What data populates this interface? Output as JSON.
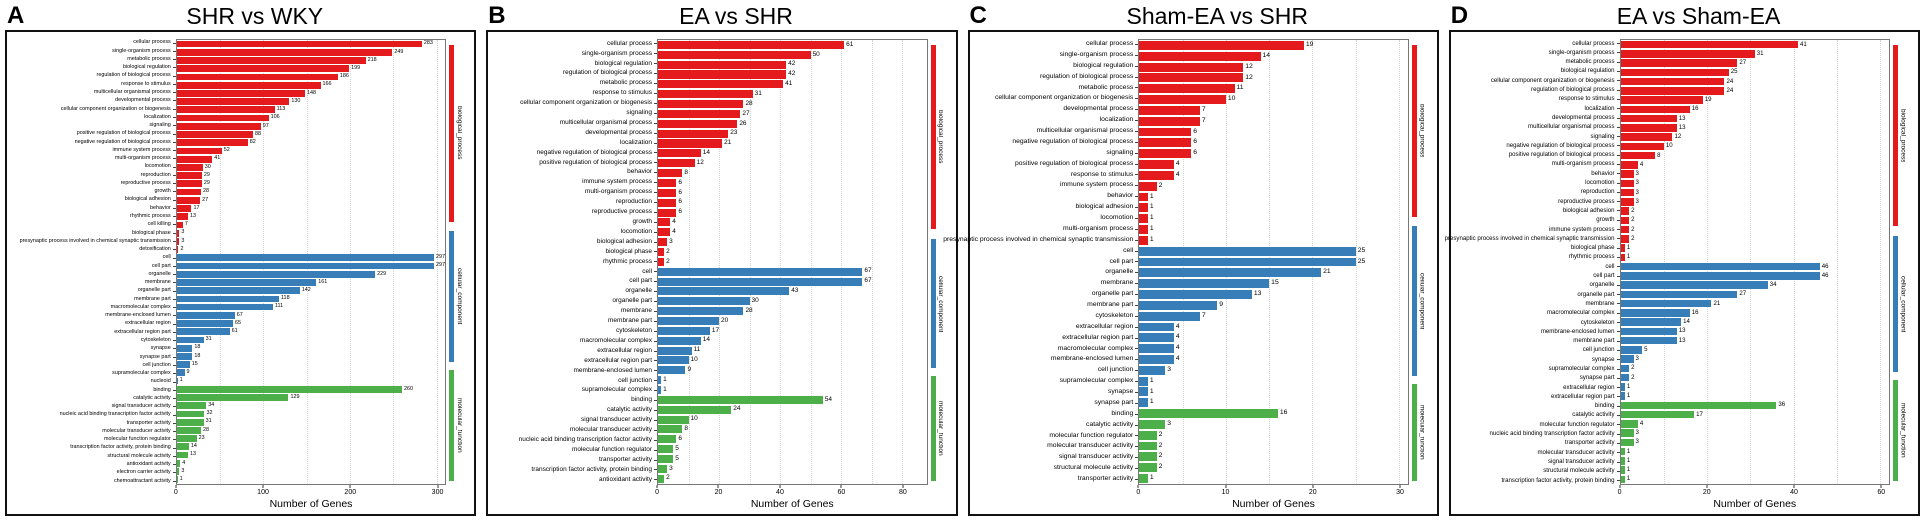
{
  "figure": {
    "background": "#ffffff",
    "axis_label": "Number of Genes",
    "category_colors": {
      "biological_process": "#E41A1C",
      "cellular_component": "#377EB8",
      "molecular_function": "#4DAF4A"
    }
  },
  "chart_data": [
    {
      "panel": "A",
      "title": "SHR vs WKY",
      "type": "bar",
      "orientation": "horizontal",
      "xlabel": "Number of Genes",
      "xticks": [
        0,
        100,
        200,
        300
      ],
      "xmax": 310,
      "grid": true,
      "legend_position": "right-strip",
      "groups": [
        {
          "name": "biological_process",
          "color": "#E41A1C",
          "categories": [
            "cellular process",
            "single-organism process",
            "metabolic process",
            "biological regulation",
            "regulation of biological process",
            "response to stimulus",
            "multicellular organismal process",
            "developmental process",
            "cellular component organization or biogenesis",
            "localization",
            "signaling",
            "positive regulation of biological process",
            "negative regulation of biological process",
            "immune system process",
            "multi-organism process",
            "locomotion",
            "reproduction",
            "reproductive process",
            "growth",
            "biological adhesion",
            "behavior",
            "rhythmic process",
            "cell killing",
            "biological phase",
            "presynaptic process involved in chemical synaptic transmission",
            "detoxification"
          ],
          "values": [
            283,
            249,
            218,
            199,
            186,
            166,
            148,
            130,
            113,
            106,
            97,
            88,
            82,
            52,
            41,
            30,
            29,
            29,
            28,
            27,
            17,
            13,
            7,
            3,
            3,
            2
          ]
        },
        {
          "name": "cellular_component",
          "color": "#377EB8",
          "categories": [
            "cell",
            "cell part",
            "organelle",
            "membrane",
            "organelle part",
            "membrane part",
            "macromolecular complex",
            "membrane-enclosed lumen",
            "extracellular region",
            "extracellular region part",
            "cytoskeleton",
            "synapse",
            "synapse part",
            "cell junction",
            "supramolecular complex",
            "nucleoid"
          ],
          "values": [
            297,
            297,
            229,
            161,
            142,
            118,
            111,
            67,
            65,
            61,
            31,
            18,
            18,
            15,
            9,
            1
          ]
        },
        {
          "name": "molecular_function",
          "color": "#4DAF4A",
          "categories": [
            "binding",
            "catalytic activity",
            "signal transducer activity",
            "nucleic acid binding transcription factor activity",
            "transporter activity",
            "molecular transducer activity",
            "molecular function regulator",
            "transcription factor activity, protein binding",
            "structural molecule activity",
            "antioxidant activity",
            "electron carrier activity",
            "chemoattractant activity"
          ],
          "values": [
            260,
            129,
            34,
            32,
            31,
            28,
            23,
            14,
            13,
            4,
            3,
            1
          ]
        }
      ]
    },
    {
      "panel": "B",
      "title": "EA vs SHR",
      "type": "bar",
      "orientation": "horizontal",
      "xlabel": "Number of Genes",
      "xticks": [
        0,
        20,
        40,
        60,
        80
      ],
      "xmax": 88,
      "grid": true,
      "legend_position": "right-strip",
      "groups": [
        {
          "name": "biological_process",
          "color": "#E41A1C",
          "categories": [
            "cellular process",
            "single-organism process",
            "biological regulation",
            "regulation of biological process",
            "metabolic process",
            "response to stimulus",
            "cellular component organization or biogenesis",
            "signaling",
            "multicellular organismal process",
            "developmental process",
            "localization",
            "negative regulation of biological process",
            "positive regulation of biological process",
            "behavior",
            "immune system process",
            "multi-organism process",
            "reproduction",
            "reproductive process",
            "growth",
            "locomotion",
            "biological adhesion",
            "biological phase",
            "rhythmic process"
          ],
          "values": [
            61,
            50,
            42,
            42,
            41,
            31,
            28,
            27,
            26,
            23,
            21,
            14,
            12,
            8,
            6,
            6,
            6,
            6,
            4,
            4,
            3,
            2,
            2
          ]
        },
        {
          "name": "cellular_component",
          "color": "#377EB8",
          "categories": [
            "cell",
            "cell part",
            "organelle",
            "organelle part",
            "membrane",
            "membrane part",
            "cytoskeleton",
            "macromolecular complex",
            "extracellular region",
            "extracellular region part",
            "membrane-enclosed lumen",
            "cell junction",
            "supramolecular complex"
          ],
          "values": [
            67,
            67,
            43,
            30,
            28,
            20,
            17,
            14,
            11,
            10,
            9,
            1,
            1
          ]
        },
        {
          "name": "molecular_function",
          "color": "#4DAF4A",
          "categories": [
            "binding",
            "catalytic activity",
            "signal transducer activity",
            "molecular transducer activity",
            "nucleic acid binding transcription factor activity",
            "molecular function regulator",
            "transporter activity",
            "transcription factor activity, protein binding",
            "antioxidant activity"
          ],
          "values": [
            54,
            24,
            10,
            8,
            6,
            5,
            5,
            3,
            2
          ]
        }
      ]
    },
    {
      "panel": "C",
      "title": "Sham-EA vs SHR",
      "type": "bar",
      "orientation": "horizontal",
      "xlabel": "Number of Genes",
      "xticks": [
        0,
        10,
        20,
        30
      ],
      "xmax": 31,
      "grid": true,
      "legend_position": "right-strip",
      "groups": [
        {
          "name": "biological_process",
          "color": "#E41A1C",
          "categories": [
            "cellular process",
            "single-organism process",
            "biological regulation",
            "regulation of biological process",
            "metabolic process",
            "cellular component organization or biogenesis",
            "developmental process",
            "localization",
            "multicellular organismal process",
            "negative regulation of biological process",
            "signaling",
            "positive regulation of biological process",
            "response to stimulus",
            "immune system process",
            "behavior",
            "biological adhesion",
            "locomotion",
            "multi-organism process",
            "presynaptic process involved in chemical synaptic transmission"
          ],
          "values": [
            19,
            14,
            12,
            12,
            11,
            10,
            7,
            7,
            6,
            6,
            6,
            4,
            4,
            2,
            1,
            1,
            1,
            1,
            1
          ]
        },
        {
          "name": "cellular_component",
          "color": "#377EB8",
          "categories": [
            "cell",
            "cell part",
            "organelle",
            "membrane",
            "organelle part",
            "membrane part",
            "cytoskeleton",
            "extracellular region",
            "extracellular region part",
            "macromolecular complex",
            "membrane-enclosed lumen",
            "cell junction",
            "supramolecular complex",
            "synapse",
            "synapse part"
          ],
          "values": [
            25,
            25,
            21,
            15,
            13,
            9,
            7,
            4,
            4,
            4,
            4,
            3,
            1,
            1,
            1
          ]
        },
        {
          "name": "molecular_function",
          "color": "#4DAF4A",
          "categories": [
            "binding",
            "catalytic activity",
            "molecular function regulator",
            "molecular transducer activity",
            "signal transducer activity",
            "structural molecule activity",
            "transporter activity"
          ],
          "values": [
            16,
            3,
            2,
            2,
            2,
            2,
            1
          ]
        }
      ]
    },
    {
      "panel": "D",
      "title": "EA vs Sham-EA",
      "type": "bar",
      "orientation": "horizontal",
      "xlabel": "Number of Genes",
      "xticks": [
        0,
        20,
        40,
        60
      ],
      "xmax": 62,
      "grid": true,
      "legend_position": "right-strip",
      "groups": [
        {
          "name": "biological_process",
          "color": "#E41A1C",
          "categories": [
            "cellular process",
            "single-organism process",
            "metabolic process",
            "biological regulation",
            "cellular component organization or biogenesis",
            "regulation of biological process",
            "response to stimulus",
            "localization",
            "developmental process",
            "multicellular organismal process",
            "signaling",
            "negative regulation of biological process",
            "positive regulation of biological process",
            "multi-organism process",
            "behavior",
            "locomotion",
            "reproduction",
            "reproductive process",
            "biological adhesion",
            "growth",
            "immune system process",
            "presynaptic process involved in chemical synaptic transmission",
            "biological phase",
            "rhythmic process"
          ],
          "values": [
            41,
            31,
            27,
            25,
            24,
            24,
            19,
            16,
            13,
            13,
            12,
            10,
            8,
            4,
            3,
            3,
            3,
            3,
            2,
            2,
            2,
            2,
            1,
            1
          ]
        },
        {
          "name": "cellular_component",
          "color": "#377EB8",
          "categories": [
            "cell",
            "cell part",
            "organelle",
            "organelle part",
            "membrane",
            "macromolecular complex",
            "cytoskeleton",
            "membrane-enclosed lumen",
            "membrane part",
            "cell junction",
            "synapse",
            "supramolecular complex",
            "synapse part",
            "extracellular region",
            "extracellular region part"
          ],
          "values": [
            46,
            46,
            34,
            27,
            21,
            16,
            14,
            13,
            13,
            5,
            3,
            2,
            2,
            1,
            1
          ]
        },
        {
          "name": "molecular_function",
          "color": "#4DAF4A",
          "categories": [
            "binding",
            "catalytic activity",
            "molecular function regulator",
            "nucleic acid binding transcription factor activity",
            "transporter activity",
            "molecular transducer activity",
            "signal transducer activity",
            "structural molecule activity",
            "transcription factor activity, protein binding"
          ],
          "values": [
            36,
            17,
            4,
            3,
            3,
            1,
            1,
            1,
            1
          ]
        }
      ]
    }
  ]
}
